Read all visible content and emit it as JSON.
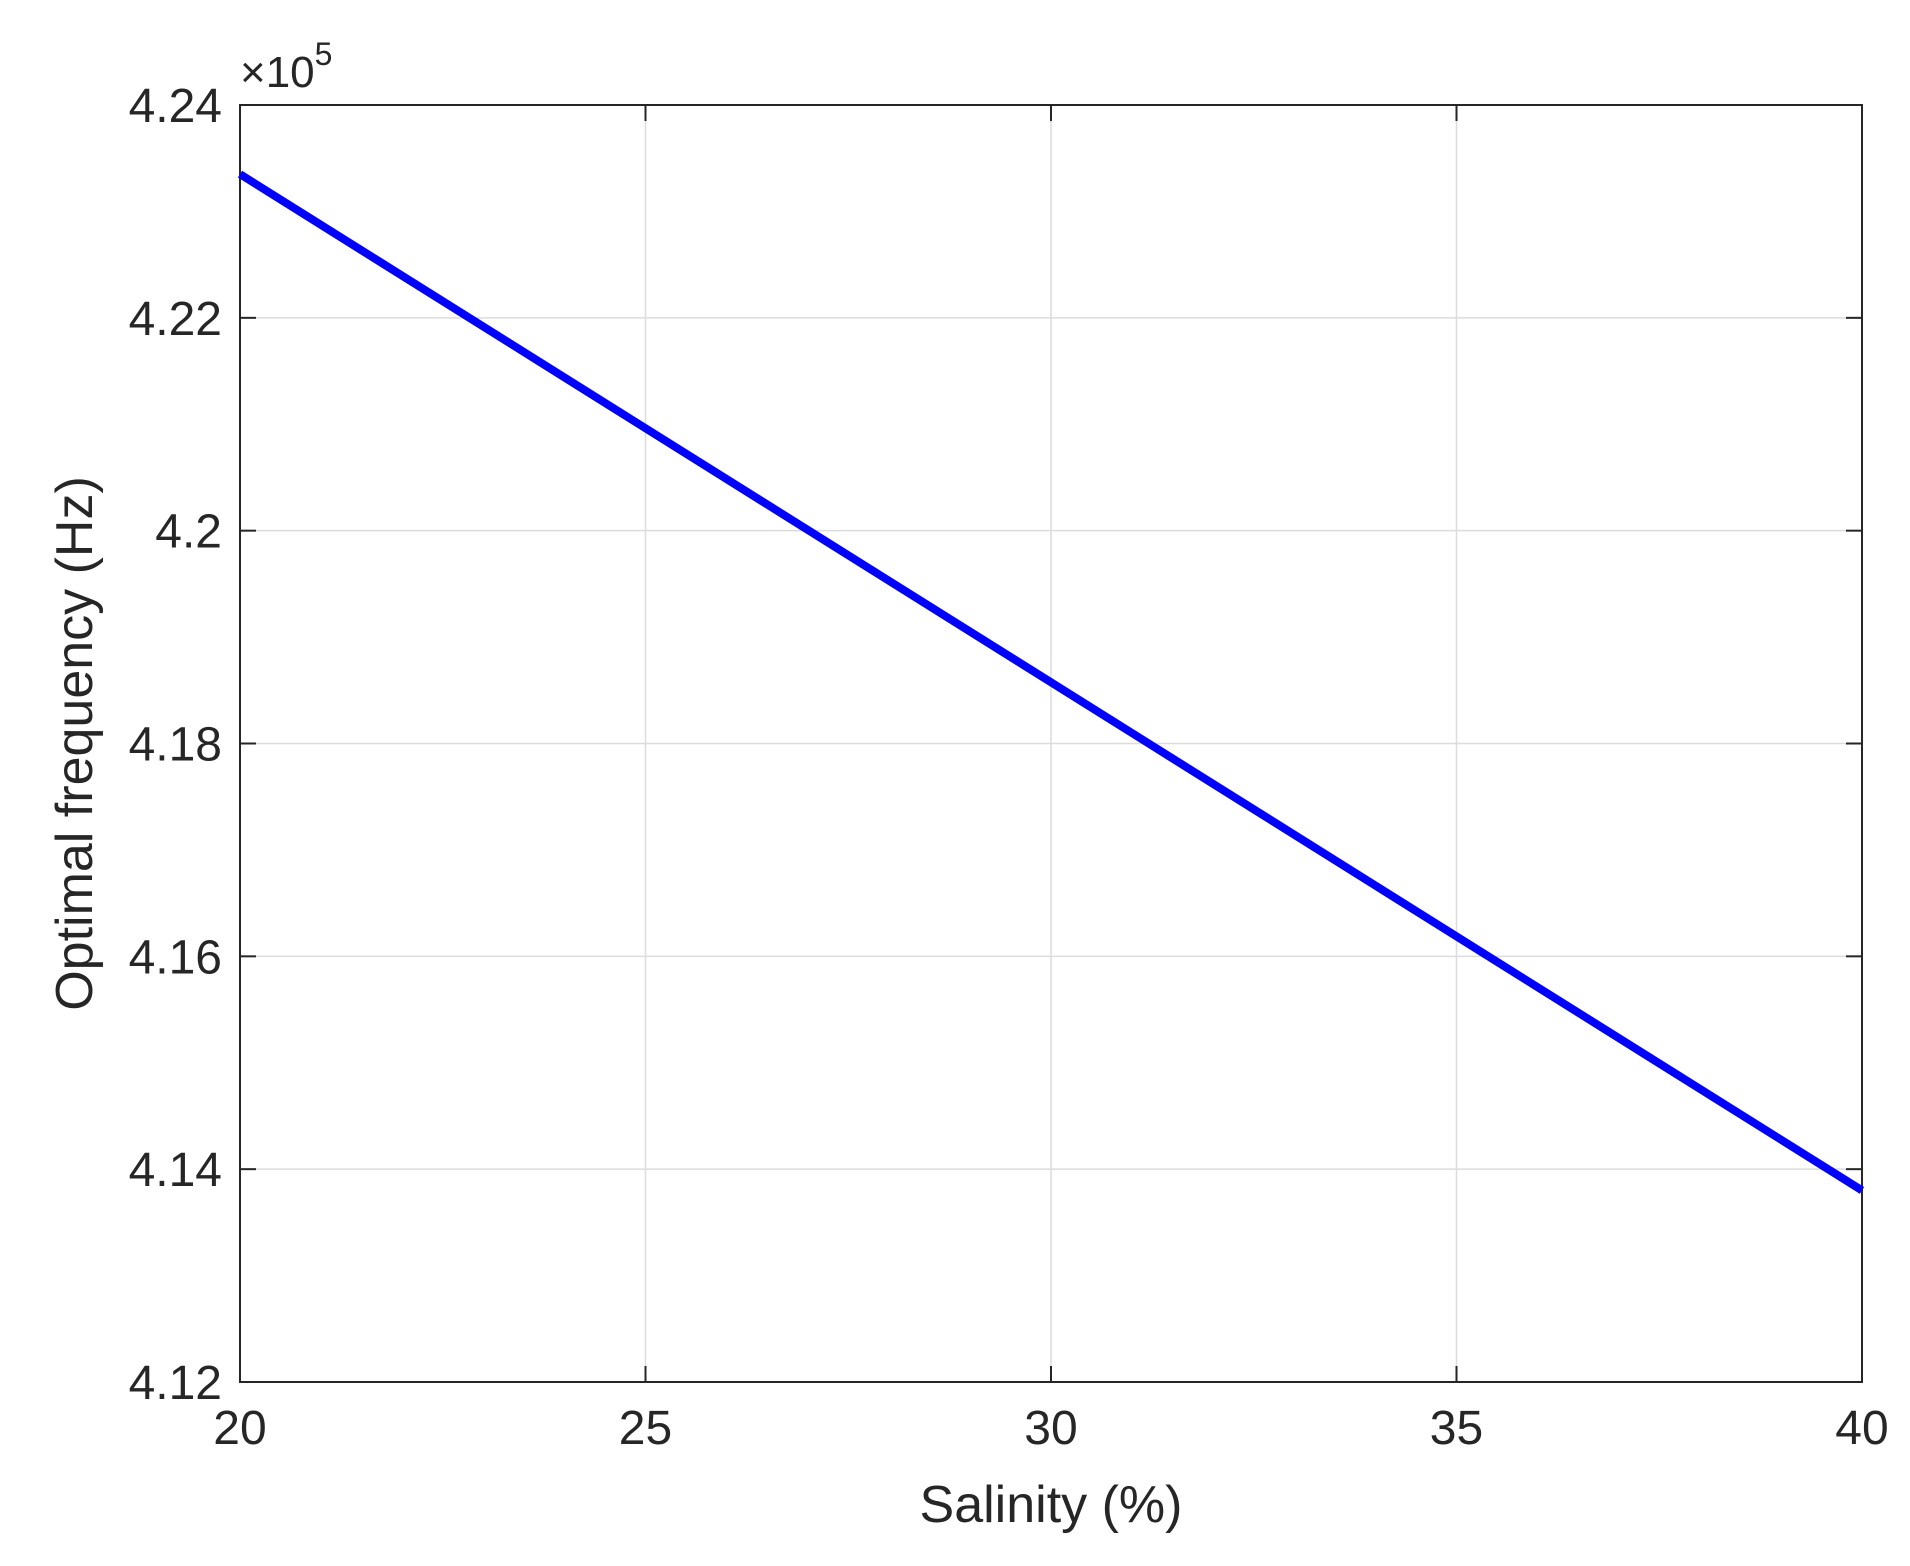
{
  "chart_data": {
    "type": "line",
    "xlabel": "Salinity (%)",
    "ylabel": "Optimal frequency (Hz)",
    "xlim": [
      20,
      40
    ],
    "ylim": [
      4.12,
      4.24
    ],
    "x_ticks": [
      "20",
      "25",
      "30",
      "35",
      "40"
    ],
    "y_ticks": [
      "4.12",
      "4.14",
      "4.16",
      "4.18",
      "4.2",
      "4.22",
      "4.24"
    ],
    "y_multiplier": {
      "base": "×10",
      "exponent": "5"
    },
    "grid": true,
    "series": [
      {
        "color": "#0000ff",
        "x": [
          20,
          40
        ],
        "y": [
          4.2335,
          4.138
        ]
      }
    ]
  }
}
